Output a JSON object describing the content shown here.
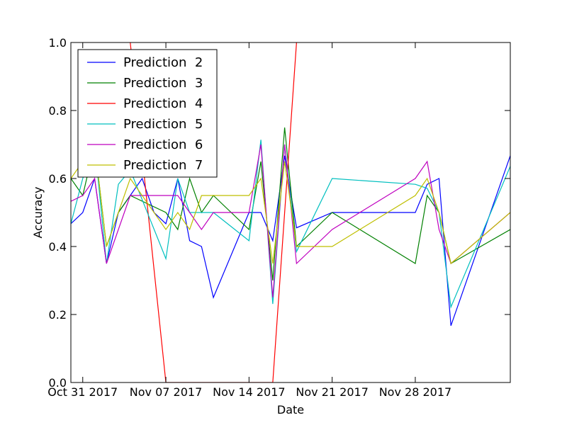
{
  "chart_data": {
    "type": "line",
    "title": "",
    "xlabel": "Date",
    "ylabel": "Accuracy",
    "xlim": [
      "2017-10-30",
      "2017-12-06"
    ],
    "ylim": [
      0,
      1
    ],
    "x_ticks": [
      {
        "date": "2017-10-31",
        "label": "Oct 31 2017"
      },
      {
        "date": "2017-11-07",
        "label": "Nov 07 2017"
      },
      {
        "date": "2017-11-14",
        "label": "Nov 14 2017"
      },
      {
        "date": "2017-11-21",
        "label": "Nov 21 2017"
      },
      {
        "date": "2017-11-28",
        "label": "Nov 28 2017"
      }
    ],
    "y_ticks": [
      {
        "value": 0.0,
        "label": "0.0"
      },
      {
        "value": 0.2,
        "label": "0.2"
      },
      {
        "value": 0.4,
        "label": "0.4"
      },
      {
        "value": 0.6,
        "label": "0.6"
      },
      {
        "value": 0.8,
        "label": "0.8"
      },
      {
        "value": 1.0,
        "label": "1.0"
      }
    ],
    "legend": "top-left",
    "grid": false,
    "series": [
      {
        "name": "Prediction  2",
        "color": "#0000ff",
        "points": [
          [
            "2017-10-30",
            0.467
          ],
          [
            "2017-10-31",
            0.5
          ],
          [
            "2017-11-01",
            0.6
          ],
          [
            "2017-11-02",
            0.35
          ],
          [
            "2017-11-03",
            0.5
          ],
          [
            "2017-11-04",
            0.55
          ],
          [
            "2017-11-05",
            0.6
          ],
          [
            "2017-11-06",
            0.5
          ],
          [
            "2017-11-07",
            0.467
          ],
          [
            "2017-11-08",
            0.6
          ],
          [
            "2017-11-09",
            0.417
          ],
          [
            "2017-11-10",
            0.4
          ],
          [
            "2017-11-11",
            0.25
          ],
          [
            "2017-11-14",
            0.5
          ],
          [
            "2017-11-15",
            0.5
          ],
          [
            "2017-11-16",
            0.417
          ],
          [
            "2017-11-17",
            0.667
          ],
          [
            "2017-11-18",
            0.455
          ],
          [
            "2017-11-21",
            0.5
          ],
          [
            "2017-11-28",
            0.5
          ],
          [
            "2017-11-29",
            0.583
          ],
          [
            "2017-11-30",
            0.6
          ],
          [
            "2017-12-01",
            0.167
          ],
          [
            "2017-12-06",
            0.667
          ]
        ]
      },
      {
        "name": "Prediction  3",
        "color": "#008000",
        "points": [
          [
            "2017-10-30",
            0.6
          ],
          [
            "2017-10-31",
            0.55
          ],
          [
            "2017-11-01",
            0.7
          ],
          [
            "2017-11-02",
            0.4
          ],
          [
            "2017-11-03",
            0.5
          ],
          [
            "2017-11-04",
            0.55
          ],
          [
            "2017-11-07",
            0.5
          ],
          [
            "2017-11-08",
            0.45
          ],
          [
            "2017-11-09",
            0.6
          ],
          [
            "2017-11-10",
            0.5
          ],
          [
            "2017-11-11",
            0.55
          ],
          [
            "2017-11-14",
            0.45
          ],
          [
            "2017-11-15",
            0.65
          ],
          [
            "2017-11-16",
            0.3
          ],
          [
            "2017-11-17",
            0.75
          ],
          [
            "2017-11-18",
            0.4
          ],
          [
            "2017-11-21",
            0.5
          ],
          [
            "2017-11-28",
            0.35
          ],
          [
            "2017-11-29",
            0.55
          ],
          [
            "2017-11-30",
            0.5
          ],
          [
            "2017-12-01",
            0.35
          ],
          [
            "2017-12-06",
            0.45
          ]
        ]
      },
      {
        "name": "Prediction  4",
        "color": "#ff0000",
        "points": [
          [
            "2017-11-04",
            1.0
          ],
          [
            "2017-11-07",
            0.0
          ],
          [
            "2017-11-16",
            0.0
          ],
          [
            "2017-11-18",
            1.0
          ]
        ]
      },
      {
        "name": "Prediction  5",
        "color": "#00bfbf",
        "points": [
          [
            "2017-10-30",
            0.467
          ],
          [
            "2017-10-31",
            0.6
          ],
          [
            "2017-11-01",
            0.7
          ],
          [
            "2017-11-02",
            0.35
          ],
          [
            "2017-11-03",
            0.583
          ],
          [
            "2017-11-04",
            0.625
          ],
          [
            "2017-11-07",
            0.364
          ],
          [
            "2017-11-08",
            0.6
          ],
          [
            "2017-11-09",
            0.5
          ],
          [
            "2017-11-10",
            0.5
          ],
          [
            "2017-11-11",
            0.5
          ],
          [
            "2017-11-14",
            0.417
          ],
          [
            "2017-11-15",
            0.714
          ],
          [
            "2017-11-16",
            0.231
          ],
          [
            "2017-11-17",
            0.7
          ],
          [
            "2017-11-18",
            0.385
          ],
          [
            "2017-11-21",
            0.6
          ],
          [
            "2017-11-28",
            0.583
          ],
          [
            "2017-11-29",
            0.571
          ],
          [
            "2017-11-30",
            0.5
          ],
          [
            "2017-12-01",
            0.222
          ],
          [
            "2017-12-06",
            0.636
          ]
        ]
      },
      {
        "name": "Prediction  6",
        "color": "#bf00bf",
        "points": [
          [
            "2017-10-30",
            0.533
          ],
          [
            "2017-10-31",
            0.55
          ],
          [
            "2017-11-01",
            0.6
          ],
          [
            "2017-11-02",
            0.35
          ],
          [
            "2017-11-03",
            0.45
          ],
          [
            "2017-11-04",
            0.55
          ],
          [
            "2017-11-08",
            0.55
          ],
          [
            "2017-11-09",
            0.5
          ],
          [
            "2017-11-10",
            0.45
          ],
          [
            "2017-11-11",
            0.5
          ],
          [
            "2017-11-14",
            0.5
          ],
          [
            "2017-11-15",
            0.7
          ],
          [
            "2017-11-16",
            0.25
          ],
          [
            "2017-11-17",
            0.7
          ],
          [
            "2017-11-18",
            0.35
          ],
          [
            "2017-11-21",
            0.45
          ],
          [
            "2017-11-28",
            0.6
          ],
          [
            "2017-11-29",
            0.65
          ],
          [
            "2017-11-30",
            0.45
          ],
          [
            "2017-12-01",
            0.35
          ],
          [
            "2017-12-06",
            0.5
          ]
        ]
      },
      {
        "name": "Prediction  7",
        "color": "#bfbf00",
        "points": [
          [
            "2017-10-30",
            0.6
          ],
          [
            "2017-10-31",
            0.65
          ],
          [
            "2017-11-01",
            0.7
          ],
          [
            "2017-11-02",
            0.4
          ],
          [
            "2017-11-03",
            0.5
          ],
          [
            "2017-11-04",
            0.6
          ],
          [
            "2017-11-07",
            0.45
          ],
          [
            "2017-11-08",
            0.5
          ],
          [
            "2017-11-09",
            0.45
          ],
          [
            "2017-11-10",
            0.55
          ],
          [
            "2017-11-14",
            0.55
          ],
          [
            "2017-11-15",
            0.6
          ],
          [
            "2017-11-16",
            0.35
          ],
          [
            "2017-11-17",
            0.65
          ],
          [
            "2017-11-18",
            0.4
          ],
          [
            "2017-11-21",
            0.4
          ],
          [
            "2017-11-28",
            0.55
          ],
          [
            "2017-11-29",
            0.6
          ],
          [
            "2017-11-30",
            0.5
          ],
          [
            "2017-12-01",
            0.35
          ],
          [
            "2017-12-06",
            0.5
          ]
        ]
      }
    ]
  }
}
